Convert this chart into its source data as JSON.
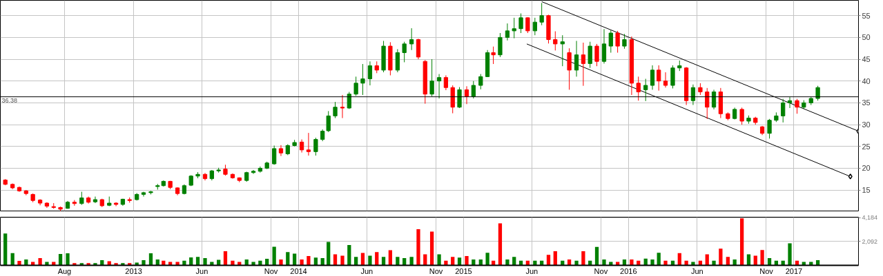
{
  "chart_data": [
    {
      "type": "candlestick",
      "x": [
        "2012-03-23",
        "2012-04-08",
        "2012-04-23",
        "2012-05-08",
        "2012-05-23",
        "2012-06-08",
        "2012-06-23",
        "2012-07-08",
        "2012-07-23",
        "2012-08-08",
        "2012-08-23",
        "2012-09-08",
        "2012-09-23",
        "2012-10-08",
        "2012-10-23",
        "2012-11-08",
        "2012-11-23",
        "2012-12-08",
        "2012-12-23",
        "2013-01-08",
        "2013-01-23",
        "2013-02-08",
        "2013-02-23",
        "2013-03-08",
        "2013-03-23",
        "2013-04-08",
        "2013-04-23",
        "2013-05-08",
        "2013-05-23",
        "2013-06-08",
        "2013-06-23",
        "2013-07-08",
        "2013-07-23",
        "2013-08-08",
        "2013-08-23",
        "2013-09-08",
        "2013-09-23",
        "2013-10-08",
        "2013-10-23",
        "2013-11-08",
        "2013-11-23",
        "2013-12-08",
        "2013-12-23",
        "2014-01-08",
        "2014-01-23",
        "2014-02-08",
        "2014-02-23",
        "2014-03-08",
        "2014-03-23",
        "2014-04-08",
        "2014-04-23",
        "2014-05-08",
        "2014-05-23",
        "2014-06-08",
        "2014-06-23",
        "2014-07-08",
        "2014-07-23",
        "2014-08-08",
        "2014-08-23",
        "2014-09-08",
        "2014-09-23",
        "2014-10-08",
        "2014-10-23",
        "2014-11-08",
        "2014-11-23",
        "2014-12-08",
        "2014-12-23",
        "2015-01-08",
        "2015-01-23",
        "2015-02-08",
        "2015-02-23",
        "2015-03-08",
        "2015-03-23",
        "2015-04-08",
        "2015-04-23",
        "2015-05-08",
        "2015-05-23",
        "2015-06-08",
        "2015-06-23",
        "2015-07-08",
        "2015-07-23",
        "2015-08-08",
        "2015-08-23",
        "2015-09-08",
        "2015-09-23",
        "2015-10-08",
        "2015-10-23",
        "2015-11-08",
        "2015-11-23",
        "2015-12-08",
        "2015-12-23",
        "2016-01-08",
        "2016-01-23",
        "2016-02-08",
        "2016-02-23",
        "2016-03-08",
        "2016-03-23",
        "2016-04-08",
        "2016-04-23",
        "2016-05-08",
        "2016-05-23",
        "2016-06-08",
        "2016-06-23",
        "2016-07-08",
        "2016-07-23",
        "2016-08-08",
        "2016-08-23",
        "2016-09-08",
        "2016-09-23",
        "2016-10-08",
        "2016-10-23",
        "2016-11-08",
        "2016-11-23",
        "2016-12-08",
        "2016-12-23",
        "2017-01-08",
        "2017-01-23",
        "2017-02-08",
        "2017-02-23"
      ],
      "ohlc": [
        [
          17.3,
          17.5,
          16.1,
          16.3
        ],
        [
          16.3,
          16.5,
          15.2,
          15.5
        ],
        [
          15.6,
          15.8,
          14.6,
          14.8
        ],
        [
          14.8,
          15.0,
          13.8,
          14.2
        ],
        [
          14.0,
          14.2,
          12.2,
          12.6
        ],
        [
          12.7,
          12.9,
          11.5,
          12.0
        ],
        [
          12.0,
          12.2,
          10.9,
          11.3
        ],
        [
          11.2,
          12.0,
          10.7,
          11.0
        ],
        [
          11.0,
          11.2,
          10.1,
          10.6
        ],
        [
          10.8,
          12.5,
          10.7,
          12.2
        ],
        [
          12.2,
          12.7,
          11.4,
          11.9
        ],
        [
          11.9,
          14.6,
          11.6,
          13.2
        ],
        [
          13.2,
          13.5,
          11.9,
          12.2
        ],
        [
          12.3,
          13.5,
          12.0,
          12.8
        ],
        [
          12.8,
          13.0,
          11.1,
          11.4
        ],
        [
          11.5,
          13.5,
          11.3,
          12.0
        ],
        [
          12.0,
          12.2,
          11.3,
          11.7
        ],
        [
          11.7,
          13.0,
          11.4,
          12.9
        ],
        [
          12.8,
          13.3,
          12.1,
          12.6
        ],
        [
          12.8,
          14.3,
          12.6,
          14.0
        ],
        [
          14.0,
          14.6,
          13.5,
          14.4
        ],
        [
          14.4,
          14.8,
          14.0,
          14.6
        ],
        [
          15.8,
          16.4,
          15.1,
          16.0
        ],
        [
          16.0,
          17.2,
          15.8,
          17.0
        ],
        [
          17.0,
          17.1,
          15.2,
          15.6
        ],
        [
          15.5,
          15.6,
          13.8,
          14.2
        ],
        [
          14.2,
          16.3,
          14.0,
          16.0
        ],
        [
          16.1,
          18.4,
          15.9,
          18.2
        ],
        [
          18.2,
          19.1,
          17.7,
          18.6
        ],
        [
          18.6,
          18.9,
          17.2,
          17.6
        ],
        [
          17.6,
          19.6,
          17.2,
          19.4
        ],
        [
          19.4,
          20.1,
          19.0,
          19.6
        ],
        [
          19.8,
          20.8,
          18.3,
          18.6
        ],
        [
          18.6,
          18.8,
          17.6,
          17.8
        ],
        [
          17.8,
          17.9,
          16.8,
          17.2
        ],
        [
          17.2,
          19.2,
          16.9,
          19.0
        ],
        [
          19.0,
          19.6,
          18.7,
          19.3
        ],
        [
          19.3,
          20.4,
          19.0,
          20.0
        ],
        [
          20.0,
          21.5,
          19.8,
          21.2
        ],
        [
          21.0,
          25.2,
          20.8,
          24.5
        ],
        [
          24.5,
          25.3,
          22.8,
          23.5
        ],
        [
          23.3,
          25.5,
          23.0,
          25.2
        ],
        [
          25.2,
          26.5,
          25.0,
          25.9
        ],
        [
          26.0,
          26.6,
          23.6,
          24.2
        ],
        [
          24.2,
          28.1,
          22.9,
          23.8
        ],
        [
          23.8,
          27.0,
          22.9,
          26.6
        ],
        [
          26.6,
          28.9,
          26.2,
          28.5
        ],
        [
          28.6,
          33.1,
          28.3,
          32.0
        ],
        [
          32.0,
          35.2,
          31.5,
          34.0
        ],
        [
          34.0,
          36.8,
          31.5,
          33.8
        ],
        [
          33.8,
          37.5,
          33.6,
          37.0
        ],
        [
          37.0,
          41.0,
          36.6,
          39.5
        ],
        [
          39.5,
          43.9,
          36.8,
          40.5
        ],
        [
          40.5,
          44.5,
          39.0,
          43.5
        ],
        [
          43.5,
          44.5,
          41.8,
          42.5
        ],
        [
          42.5,
          49.2,
          42.0,
          48.0
        ],
        [
          48.0,
          48.9,
          41.3,
          42.5
        ],
        [
          42.5,
          47.3,
          42.0,
          46.5
        ],
        [
          46.5,
          49.0,
          44.3,
          48.5
        ],
        [
          48.5,
          52.1,
          47.1,
          49.5
        ],
        [
          49.5,
          49.7,
          45.0,
          45.5
        ],
        [
          44.5,
          44.8,
          34.8,
          37.0
        ],
        [
          37.0,
          45.0,
          36.5,
          40.0
        ],
        [
          40.0,
          41.6,
          36.0,
          40.8
        ],
        [
          40.8,
          41.3,
          37.9,
          38.5
        ],
        [
          38.5,
          39.0,
          32.6,
          34.0
        ],
        [
          34.0,
          38.6,
          33.8,
          38.0
        ],
        [
          38.0,
          38.8,
          34.7,
          36.5
        ],
        [
          36.5,
          40.0,
          36.0,
          39.0
        ],
        [
          39.0,
          41.6,
          38.1,
          41.0
        ],
        [
          41.0,
          47.1,
          40.9,
          46.5
        ],
        [
          46.5,
          47.9,
          43.9,
          46.0
        ],
        [
          46.0,
          51.0,
          45.5,
          50.0
        ],
        [
          50.0,
          53.2,
          49.3,
          51.5
        ],
        [
          51.5,
          54.5,
          49.8,
          52.0
        ],
        [
          52.0,
          55.5,
          51.0,
          54.5
        ],
        [
          54.5,
          54.6,
          51.0,
          51.5
        ],
        [
          51.5,
          54.5,
          50.5,
          53.5
        ],
        [
          53.5,
          57.9,
          52.8,
          55.0
        ],
        [
          55.0,
          55.2,
          48.6,
          49.5
        ],
        [
          49.5,
          51.4,
          47.0,
          48.5
        ],
        [
          48.5,
          50.5,
          43.4,
          49.0
        ],
        [
          46.5,
          47.5,
          38.0,
          42.5
        ],
        [
          42.5,
          49.2,
          41.0,
          46.0
        ],
        [
          46.0,
          48.8,
          38.9,
          44.0
        ],
        [
          44.0,
          49.0,
          43.0,
          48.0
        ],
        [
          48.0,
          48.5,
          43.4,
          44.5
        ],
        [
          44.5,
          51.9,
          44.0,
          48.5
        ],
        [
          48.0,
          51.6,
          46.5,
          51.0
        ],
        [
          51.0,
          51.5,
          46.5,
          48.0
        ],
        [
          48.0,
          50.8,
          47.4,
          49.5
        ],
        [
          49.5,
          50.2,
          36.8,
          39.5
        ],
        [
          39.5,
          41.0,
          35.5,
          37.5
        ],
        [
          38.0,
          40.5,
          35.4,
          39.0
        ],
        [
          39.0,
          43.6,
          38.0,
          42.5
        ],
        [
          42.5,
          43.6,
          37.8,
          40.0
        ],
        [
          40.0,
          42.0,
          38.5,
          39.0
        ],
        [
          39.0,
          43.6,
          38.3,
          43.0
        ],
        [
          43.0,
          44.7,
          42.3,
          43.5
        ],
        [
          43.0,
          43.2,
          34.5,
          35.5
        ],
        [
          35.5,
          39.2,
          34.5,
          38.5
        ],
        [
          38.5,
          39.5,
          36.8,
          37.5
        ],
        [
          37.5,
          38.4,
          31.3,
          34.0
        ],
        [
          34.0,
          38.0,
          33.5,
          37.5
        ],
        [
          37.5,
          38.4,
          31.5,
          32.5
        ],
        [
          32.5,
          32.8,
          31.0,
          31.4
        ],
        [
          31.4,
          33.9,
          31.2,
          33.5
        ],
        [
          33.5,
          33.9,
          30.0,
          30.8
        ],
        [
          30.8,
          32.1,
          30.2,
          31.5
        ],
        [
          31.5,
          31.8,
          30.0,
          30.5
        ],
        [
          29.5,
          29.7,
          27.6,
          28.0
        ],
        [
          28.0,
          31.3,
          26.8,
          31.0
        ],
        [
          31.0,
          32.8,
          30.6,
          32.0
        ],
        [
          32.0,
          35.9,
          30.5,
          35.0
        ],
        [
          35.0,
          36.3,
          33.8,
          35.5
        ],
        [
          35.5,
          35.9,
          32.5,
          34.0
        ],
        [
          34.0,
          35.6,
          33.6,
          35.0
        ],
        [
          35.0,
          36.3,
          34.5,
          36.0
        ],
        [
          36.0,
          38.9,
          35.5,
          38.5
        ]
      ],
      "colors": [
        "#ff0000",
        "#ff0000",
        "#ff0000",
        "#ff0000",
        "#ff0000",
        "#ff0000",
        "#ff0000",
        "#ff0000",
        "#ff0000",
        "#008000",
        "#ff0000",
        "#008000",
        "#ff0000",
        "#008000",
        "#ff0000",
        "#008000",
        "#ff0000",
        "#008000",
        "#ff0000",
        "#008000",
        "#008000",
        "#008000",
        "#008000",
        "#008000",
        "#ff0000",
        "#ff0000",
        "#008000",
        "#008000",
        "#008000",
        "#ff0000",
        "#008000",
        "#008000",
        "#ff0000",
        "#ff0000",
        "#ff0000",
        "#008000",
        "#008000",
        "#008000",
        "#008000",
        "#008000",
        "#ff0000",
        "#008000",
        "#008000",
        "#ff0000",
        "#ff0000",
        "#008000",
        "#008000",
        "#008000",
        "#008000",
        "#ff0000",
        "#008000",
        "#008000",
        "#008000",
        "#008000",
        "#ff0000",
        "#008000",
        "#ff0000",
        "#008000",
        "#008000",
        "#008000",
        "#ff0000",
        "#ff0000",
        "#008000",
        "#008000",
        "#ff0000",
        "#ff0000",
        "#008000",
        "#ff0000",
        "#008000",
        "#008000",
        "#008000",
        "#ff0000",
        "#008000",
        "#008000",
        "#008000",
        "#008000",
        "#ff0000",
        "#008000",
        "#008000",
        "#ff0000",
        "#ff0000",
        "#008000",
        "#ff0000",
        "#008000",
        "#ff0000",
        "#008000",
        "#ff0000",
        "#008000",
        "#008000",
        "#ff0000",
        "#008000",
        "#ff0000",
        "#ff0000",
        "#008000",
        "#008000",
        "#ff0000",
        "#ff0000",
        "#008000",
        "#008000",
        "#ff0000",
        "#008000",
        "#ff0000",
        "#ff0000",
        "#008000",
        "#ff0000",
        "#ff0000",
        "#008000",
        "#ff0000",
        "#008000",
        "#ff0000",
        "#ff0000",
        "#008000",
        "#008000",
        "#008000",
        "#008000",
        "#ff0000",
        "#008000",
        "#008000",
        "#008000"
      ],
      "series": [
        {
          "type": "line",
          "color": "#000000",
          "marker": "diamond",
          "x": [
            "2015-06-23",
            "2017-05-24"
          ],
          "values": [
            58.2,
            28.5
          ]
        },
        {
          "type": "line",
          "color": "#000000",
          "marker": "diamond",
          "x": [
            "2015-05-21",
            "2017-05-06"
          ],
          "values": [
            48.5,
            18.1
          ]
        }
      ],
      "ref_lines": [
        {
          "axis": "y",
          "value": 36.38,
          "label": "36.38",
          "color": "#000000"
        }
      ],
      "xlim": [
        "2012-03-12",
        "2017-05-24"
      ],
      "xticks": [
        {
          "value": "2012-08-01",
          "label": null
        },
        {
          "value": "2013-01-01",
          "label": null
        },
        {
          "value": "2013-06-01",
          "label": null
        },
        {
          "value": "2013-11-01",
          "label": null
        },
        {
          "value": "2014-01-01",
          "label": null
        },
        {
          "value": "2014-06-01",
          "label": null
        },
        {
          "value": "2014-11-01",
          "label": null
        },
        {
          "value": "2015-01-01",
          "label": null
        },
        {
          "value": "2015-06-01",
          "label": null
        },
        {
          "value": "2015-11-01",
          "label": null
        },
        {
          "value": "2016-01-01",
          "label": null
        },
        {
          "value": "2016-06-01",
          "label": null
        },
        {
          "value": "2016-11-01",
          "label": null
        },
        {
          "value": "2017-01-01",
          "label": null
        }
      ],
      "ylim": [
        10.2,
        58.5
      ],
      "yticks": [
        15,
        20,
        25,
        30,
        35,
        40,
        45,
        50,
        55
      ],
      "grid": true,
      "tick_labels": "y"
    },
    {
      "type": "bar",
      "x": [
        "2012-03-23",
        "2012-04-08",
        "2012-04-23",
        "2012-05-08",
        "2012-05-23",
        "2012-06-08",
        "2012-06-23",
        "2012-07-08",
        "2012-07-23",
        "2012-08-08",
        "2012-08-23",
        "2012-09-08",
        "2012-09-23",
        "2012-10-08",
        "2012-10-23",
        "2012-11-08",
        "2012-11-23",
        "2012-12-08",
        "2012-12-23",
        "2013-01-08",
        "2013-01-23",
        "2013-02-08",
        "2013-02-23",
        "2013-03-08",
        "2013-03-23",
        "2013-04-08",
        "2013-04-23",
        "2013-05-08",
        "2013-05-23",
        "2013-06-08",
        "2013-06-23",
        "2013-07-08",
        "2013-07-23",
        "2013-08-08",
        "2013-08-23",
        "2013-09-08",
        "2013-09-23",
        "2013-10-08",
        "2013-10-23",
        "2013-11-08",
        "2013-11-23",
        "2013-12-08",
        "2013-12-23",
        "2014-01-08",
        "2014-01-23",
        "2014-02-08",
        "2014-02-23",
        "2014-03-08",
        "2014-03-23",
        "2014-04-08",
        "2014-04-23",
        "2014-05-08",
        "2014-05-23",
        "2014-06-08",
        "2014-06-23",
        "2014-07-08",
        "2014-07-23",
        "2014-08-08",
        "2014-08-23",
        "2014-09-08",
        "2014-09-23",
        "2014-10-08",
        "2014-10-23",
        "2014-11-08",
        "2014-11-23",
        "2014-12-08",
        "2014-12-23",
        "2015-01-08",
        "2015-01-23",
        "2015-02-08",
        "2015-02-23",
        "2015-03-08",
        "2015-03-23",
        "2015-04-08",
        "2015-04-23",
        "2015-05-08",
        "2015-05-23",
        "2015-06-08",
        "2015-06-23",
        "2015-07-08",
        "2015-07-23",
        "2015-08-08",
        "2015-08-23",
        "2015-09-08",
        "2015-09-23",
        "2015-10-08",
        "2015-10-23",
        "2015-11-08",
        "2015-11-23",
        "2015-12-08",
        "2015-12-23",
        "2016-01-08",
        "2016-01-23",
        "2016-02-08",
        "2016-02-23",
        "2016-03-08",
        "2016-03-23",
        "2016-04-08",
        "2016-04-23",
        "2016-05-08",
        "2016-05-23",
        "2016-06-08",
        "2016-06-23",
        "2016-07-08",
        "2016-07-23",
        "2016-08-08",
        "2016-08-23",
        "2016-09-08",
        "2016-09-23",
        "2016-10-08",
        "2016-10-23",
        "2016-11-08",
        "2016-11-23",
        "2016-12-08",
        "2016-12-23",
        "2017-01-08",
        "2017-01-23",
        "2017-02-08",
        "2017-02-23"
      ],
      "values": [
        2800,
        1070,
        400,
        520,
        300,
        630,
        300,
        300,
        1000,
        1050,
        200,
        200,
        200,
        200,
        460,
        370,
        200,
        200,
        200,
        240,
        460,
        1050,
        520,
        410,
        300,
        300,
        410,
        700,
        740,
        630,
        300,
        480,
        1240,
        410,
        300,
        520,
        300,
        410,
        570,
        1630,
        520,
        1160,
        1020,
        520,
        810,
        680,
        630,
        2050,
        960,
        850,
        1790,
        740,
        1090,
        850,
        1160,
        740,
        1330,
        740,
        630,
        740,
        3180,
        960,
        2960,
        960,
        410,
        740,
        680,
        810,
        520,
        520,
        1110,
        410,
        3680,
        520,
        740,
        410,
        410,
        410,
        410,
        920,
        1240,
        410,
        520,
        410,
        1240,
        410,
        1610,
        520,
        300,
        300,
        520,
        520,
        410,
        590,
        520,
        1110,
        410,
        410,
        1070,
        410,
        300,
        410,
        960,
        410,
        1460,
        740,
        520,
        4120,
        960,
        850,
        1350,
        630,
        410,
        410,
        1940,
        410,
        300,
        300,
        460
      ],
      "colors": [
        "#008000",
        "#008000",
        "#ff0000",
        "#008000",
        "#ff0000",
        "#ff0000",
        "#008000",
        "#ff0000",
        "#008000",
        "#008000",
        "#ff0000",
        "#008000",
        "#ff0000",
        "#008000",
        "#008000",
        "#ff0000",
        "#ff0000",
        "#008000",
        "#ff0000",
        "#008000",
        "#008000",
        "#008000",
        "#008000",
        "#ff0000",
        "#ff0000",
        "#ff0000",
        "#008000",
        "#008000",
        "#008000",
        "#008000",
        "#008000",
        "#008000",
        "#ff0000",
        "#ff0000",
        "#ff0000",
        "#008000",
        "#008000",
        "#008000",
        "#008000",
        "#008000",
        "#ff0000",
        "#008000",
        "#008000",
        "#ff0000",
        "#ff0000",
        "#008000",
        "#008000",
        "#008000",
        "#ff0000",
        "#ff0000",
        "#008000",
        "#008000",
        "#ff0000",
        "#008000",
        "#ff0000",
        "#008000",
        "#ff0000",
        "#008000",
        "#008000",
        "#008000",
        "#ff0000",
        "#ff0000",
        "#ff0000",
        "#008000",
        "#ff0000",
        "#ff0000",
        "#008000",
        "#ff0000",
        "#008000",
        "#008000",
        "#008000",
        "#ff0000",
        "#ff0000",
        "#008000",
        "#008000",
        "#008000",
        "#ff0000",
        "#008000",
        "#008000",
        "#ff0000",
        "#ff0000",
        "#008000",
        "#ff0000",
        "#008000",
        "#ff0000",
        "#008000",
        "#008000",
        "#008000",
        "#008000",
        "#ff0000",
        "#008000",
        "#ff0000",
        "#ff0000",
        "#008000",
        "#008000",
        "#008000",
        "#ff0000",
        "#008000",
        "#ff0000",
        "#ff0000",
        "#008000",
        "#ff0000",
        "#ff0000",
        "#008000",
        "#ff0000",
        "#ff0000",
        "#008000",
        "#ff0000",
        "#008000",
        "#ff0000",
        "#ff0000",
        "#008000",
        "#008000",
        "#008000",
        "#008000",
        "#ff0000",
        "#008000",
        "#008000",
        "#008000"
      ],
      "xlim": [
        "2012-03-12",
        "2017-05-24"
      ],
      "xticks": [
        {
          "value": "2012-08-01",
          "label": "Aug"
        },
        {
          "value": "2013-01-01",
          "label": "2013"
        },
        {
          "value": "2013-06-01",
          "label": "Jun"
        },
        {
          "value": "2013-11-01",
          "label": "Nov"
        },
        {
          "value": "2014-01-01",
          "label": "2014"
        },
        {
          "value": "2014-06-01",
          "label": "Jun"
        },
        {
          "value": "2014-11-01",
          "label": "Nov"
        },
        {
          "value": "2015-01-01",
          "label": "2015"
        },
        {
          "value": "2015-06-01",
          "label": "Jun"
        },
        {
          "value": "2015-11-01",
          "label": "Nov"
        },
        {
          "value": "2016-01-01",
          "label": "2016"
        },
        {
          "value": "2016-06-01",
          "label": "Jun"
        },
        {
          "value": "2016-11-01",
          "label": "Nov"
        },
        {
          "value": "2017-01-01",
          "label": "2017"
        }
      ],
      "ylim": [
        0,
        4230
      ],
      "yticks": [
        {
          "value": 2092,
          "label": "2,092"
        },
        {
          "value": 4184,
          "label": "4,184"
        }
      ],
      "grid": true
    }
  ]
}
